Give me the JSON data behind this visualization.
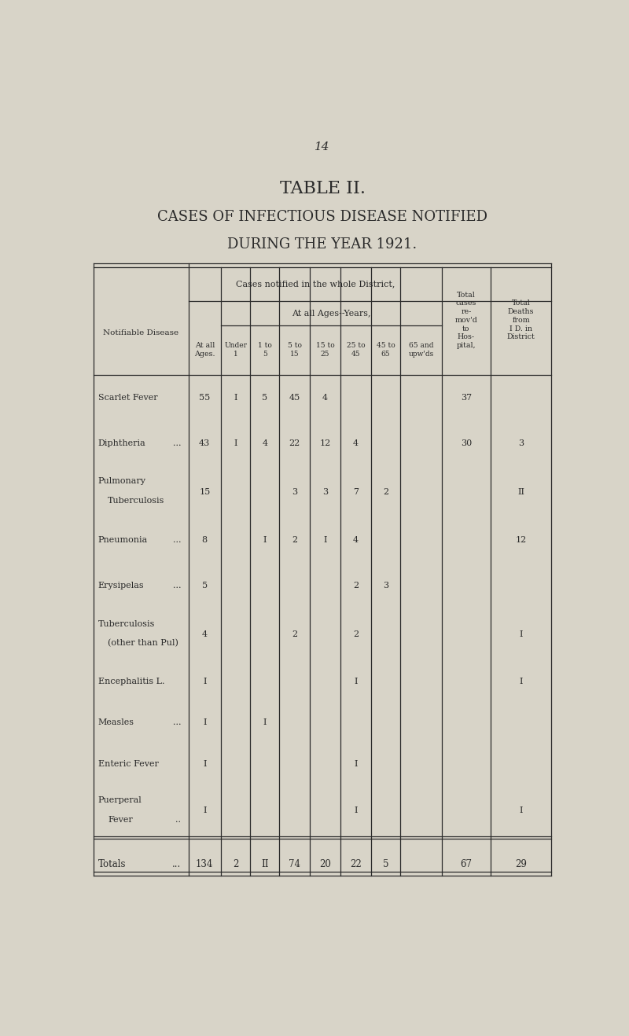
{
  "page_number": "14",
  "title1": "TABLE II.",
  "title2": "CASES OF INFECTIOUS DISEASE NOTIFIED",
  "title3": "DURING THE YEAR 1921.",
  "bg_color": "#d8d4c8",
  "text_color": "#2a2a2a",
  "header_main": "Cases notified in the whole District,",
  "header_sub": "At all Ages--Years,",
  "rows": [
    {
      "disease": "Scarlet Fever",
      "suffix": "",
      "at_all": "55",
      "under1": "I",
      "1to5": "5",
      "5to15": "45",
      "15to25": "4",
      "25to45": "",
      "45to65": "",
      "65up": "",
      "hospital": "37",
      "deaths": ""
    },
    {
      "disease": "Diphtheria",
      "suffix": "...",
      "at_all": "43",
      "under1": "I",
      "1to5": "4",
      "5to15": "22",
      "15to25": "12",
      "25to45": "4",
      "45to65": "",
      "65up": "",
      "hospital": "30",
      "deaths": "3"
    },
    {
      "disease": "Pulmonary\nTuberculosis",
      "suffix": "",
      "at_all": "15",
      "under1": "",
      "1to5": "",
      "5to15": "3",
      "15to25": "3",
      "25to45": "7",
      "45to65": "2",
      "65up": "",
      "hospital": "",
      "deaths": "II"
    },
    {
      "disease": "Pneumonia",
      "suffix": "...",
      "at_all": "8",
      "under1": "",
      "1to5": "I",
      "5to15": "2",
      "15to25": "I",
      "25to45": "4",
      "45to65": "",
      "65up": "",
      "hospital": "",
      "deaths": "12"
    },
    {
      "disease": "Erysipelas",
      "suffix": "...",
      "at_all": "5",
      "under1": "",
      "1to5": "",
      "5to15": "",
      "15to25": "",
      "25to45": "2",
      "45to65": "3",
      "65up": "",
      "hospital": "",
      "deaths": ""
    },
    {
      "disease": "Tuberculosis\n(other than Pul)",
      "suffix": "",
      "at_all": "4",
      "under1": "",
      "1to5": "",
      "5to15": "2",
      "15to25": "",
      "25to45": "2",
      "45to65": "",
      "65up": "",
      "hospital": "",
      "deaths": "I"
    },
    {
      "disease": "Encephalitis L.",
      "suffix": "",
      "at_all": "I",
      "under1": "",
      "1to5": "",
      "5to15": "",
      "15to25": "",
      "25to45": "I",
      "45to65": "",
      "65up": "",
      "hospital": "",
      "deaths": "I"
    },
    {
      "disease": "Measles",
      "suffix": "...",
      "at_all": "I",
      "under1": "",
      "1to5": "I",
      "5to15": "",
      "15to25": "",
      "25to45": "",
      "45to65": "",
      "65up": "",
      "hospital": "",
      "deaths": ""
    },
    {
      "disease": "Enteric Fever",
      "suffix": "",
      "at_all": "I",
      "under1": "",
      "1to5": "",
      "5to15": "",
      "15to25": "",
      "25to45": "I",
      "45to65": "",
      "65up": "",
      "hospital": "",
      "deaths": ""
    },
    {
      "disease": "Puerperal\nFever",
      "suffix": "..",
      "at_all": "I",
      "under1": "",
      "1to5": "",
      "5to15": "",
      "15to25": "",
      "25to45": "I",
      "45to65": "",
      "65up": "",
      "hospital": "",
      "deaths": "I"
    }
  ],
  "totals": {
    "disease": "Totals",
    "suffix": "...",
    "at_all": "134",
    "under1": "2",
    "1to5": "II",
    "5to15": "74",
    "15to25": "20",
    "25to45": "22",
    "45to65": "5",
    "65up": "",
    "hospital": "67",
    "deaths": "29"
  }
}
